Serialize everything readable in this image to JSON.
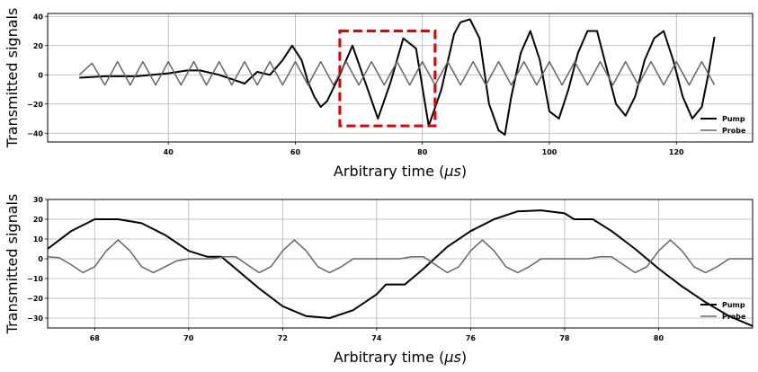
{
  "chart_data": [
    {
      "type": "line",
      "title": "",
      "xlabel": "Arbitrary time ($\\mu s$)",
      "ylabel": "Transmitted signals",
      "xlim": [
        21,
        132
      ],
      "ylim": [
        -46,
        42
      ],
      "xticks": [
        40,
        60,
        80,
        100,
        120
      ],
      "yticks": [
        -40,
        -20,
        0,
        20,
        40
      ],
      "grid": true,
      "legend": "bottom-right",
      "series": [
        {
          "name": "Pump",
          "color": "#000000",
          "x": [
            26,
            30,
            35,
            40,
            43,
            45,
            48,
            50,
            52,
            54,
            56,
            58,
            59.5,
            61,
            62,
            63,
            64,
            65,
            67,
            69,
            71,
            73,
            75,
            77,
            79,
            81,
            83,
            85,
            86,
            87.5,
            89,
            90.5,
            92,
            93,
            94,
            95.5,
            97,
            98.5,
            100,
            101.5,
            103,
            104.5,
            106,
            107.5,
            109,
            110.5,
            112,
            113.5,
            115,
            116.5,
            118,
            119.5,
            121,
            122.5,
            124,
            125,
            126
          ],
          "values": [
            -2,
            -1,
            -1,
            1,
            3,
            3,
            0,
            -3,
            -6,
            2,
            0,
            10,
            20,
            10,
            -5,
            -15,
            -22,
            -18,
            0,
            20,
            -5,
            -30,
            -5,
            25,
            18,
            -35,
            -10,
            28,
            36,
            38,
            25,
            -20,
            -38,
            -41,
            -15,
            15,
            30,
            10,
            -25,
            -30,
            -10,
            15,
            30,
            30,
            5,
            -20,
            -28,
            -15,
            10,
            25,
            30,
            10,
            -15,
            -30,
            -22,
            0,
            26
          ],
          "markers": []
        },
        {
          "name": "Probe",
          "color": "#666666",
          "x": [
            26,
            28,
            30,
            32,
            34,
            36,
            38,
            40,
            42,
            44,
            46,
            48,
            50,
            52,
            54,
            56,
            58,
            60,
            62,
            64,
            66,
            68,
            70,
            72,
            74,
            76,
            78,
            80,
            82,
            84,
            86,
            88,
            90,
            92,
            94,
            96,
            98,
            100,
            102,
            104,
            106,
            108,
            110,
            112,
            114,
            116,
            118,
            120,
            122,
            124,
            126
          ],
          "values": [
            0,
            8,
            -7,
            9,
            -7,
            9,
            -7,
            9,
            -7,
            9,
            -7,
            9,
            -7,
            9,
            -7,
            9,
            -7,
            9,
            -7,
            9,
            -7,
            9,
            -7,
            9,
            -7,
            9,
            -7,
            9,
            -7,
            9,
            -7,
            9,
            -7,
            9,
            -7,
            9,
            -7,
            9,
            -7,
            9,
            -7,
            9,
            -7,
            9,
            -7,
            9,
            -7,
            9,
            -7,
            9,
            -7
          ]
        }
      ],
      "annotations": [
        {
          "type": "rectangle",
          "style": "dashed",
          "color": "#e00000",
          "x": [
            67,
            82
          ],
          "y": [
            -35,
            30
          ]
        }
      ]
    },
    {
      "type": "line",
      "title": "",
      "xlabel": "Arbitrary time ($\\mu s$)",
      "ylabel": "Transmitted signals",
      "xlim": [
        67,
        82
      ],
      "ylim": [
        -35,
        30
      ],
      "xticks": [
        68,
        70,
        72,
        74,
        76,
        78,
        80
      ],
      "yticks": [
        -30,
        -20,
        -10,
        0,
        10,
        20,
        30
      ],
      "grid": true,
      "legend": "bottom-right",
      "series": [
        {
          "name": "Pump",
          "color": "#000000",
          "x": [
            67,
            67.5,
            68,
            68.5,
            69,
            69.5,
            70,
            70.4,
            70.7,
            71,
            71.5,
            72,
            72.5,
            73,
            73.5,
            74,
            74.2,
            74.6,
            75,
            75.5,
            76,
            76.5,
            77,
            77.5,
            78,
            78.2,
            78.6,
            79,
            79.5,
            80,
            80.5,
            81,
            81.5,
            82
          ],
          "values": [
            5,
            14,
            20,
            20,
            18,
            12,
            4,
            1,
            1,
            -5,
            -15,
            -24,
            -29,
            -30,
            -26,
            -18,
            -13,
            -13,
            -5,
            6,
            14,
            20,
            24,
            24.5,
            23,
            20,
            20,
            14,
            5,
            -5,
            -14,
            -22,
            -29,
            -34
          ]
        },
        {
          "name": "Probe",
          "color": "#666666",
          "x": [
            67,
            67.25,
            67.5,
            67.75,
            68,
            68.25,
            68.5,
            68.75,
            69,
            69.25,
            69.5,
            69.75,
            70,
            70.25,
            70.5,
            70.75,
            71,
            71.25,
            71.5,
            71.75,
            72,
            72.25,
            72.5,
            72.75,
            73,
            73.25,
            73.5,
            73.75,
            74,
            74.25,
            74.5,
            74.75,
            75,
            75.25,
            75.5,
            75.75,
            76,
            76.25,
            76.5,
            76.75,
            77,
            77.25,
            77.5,
            77.75,
            78,
            78.25,
            78.5,
            78.75,
            79,
            79.25,
            79.5,
            79.75,
            80,
            80.25,
            80.5,
            80.75,
            81,
            81.25,
            81.5,
            81.75,
            82
          ],
          "values": [
            1,
            0.5,
            -3,
            -7,
            -4,
            4,
            9.5,
            4,
            -4,
            -7,
            -4,
            -1,
            0,
            0,
            0,
            1,
            1,
            -3,
            -7,
            -4,
            4,
            9.5,
            4,
            -4,
            -7,
            -4,
            0,
            0,
            0,
            0,
            0,
            1,
            1,
            -3,
            -7,
            -4,
            4,
            9.5,
            4,
            -4,
            -7,
            -4,
            0,
            0,
            0,
            0,
            0,
            1,
            1,
            -3,
            -7,
            -4,
            4,
            9.5,
            4,
            -4,
            -7,
            -4,
            0,
            0,
            0
          ]
        }
      ]
    }
  ]
}
